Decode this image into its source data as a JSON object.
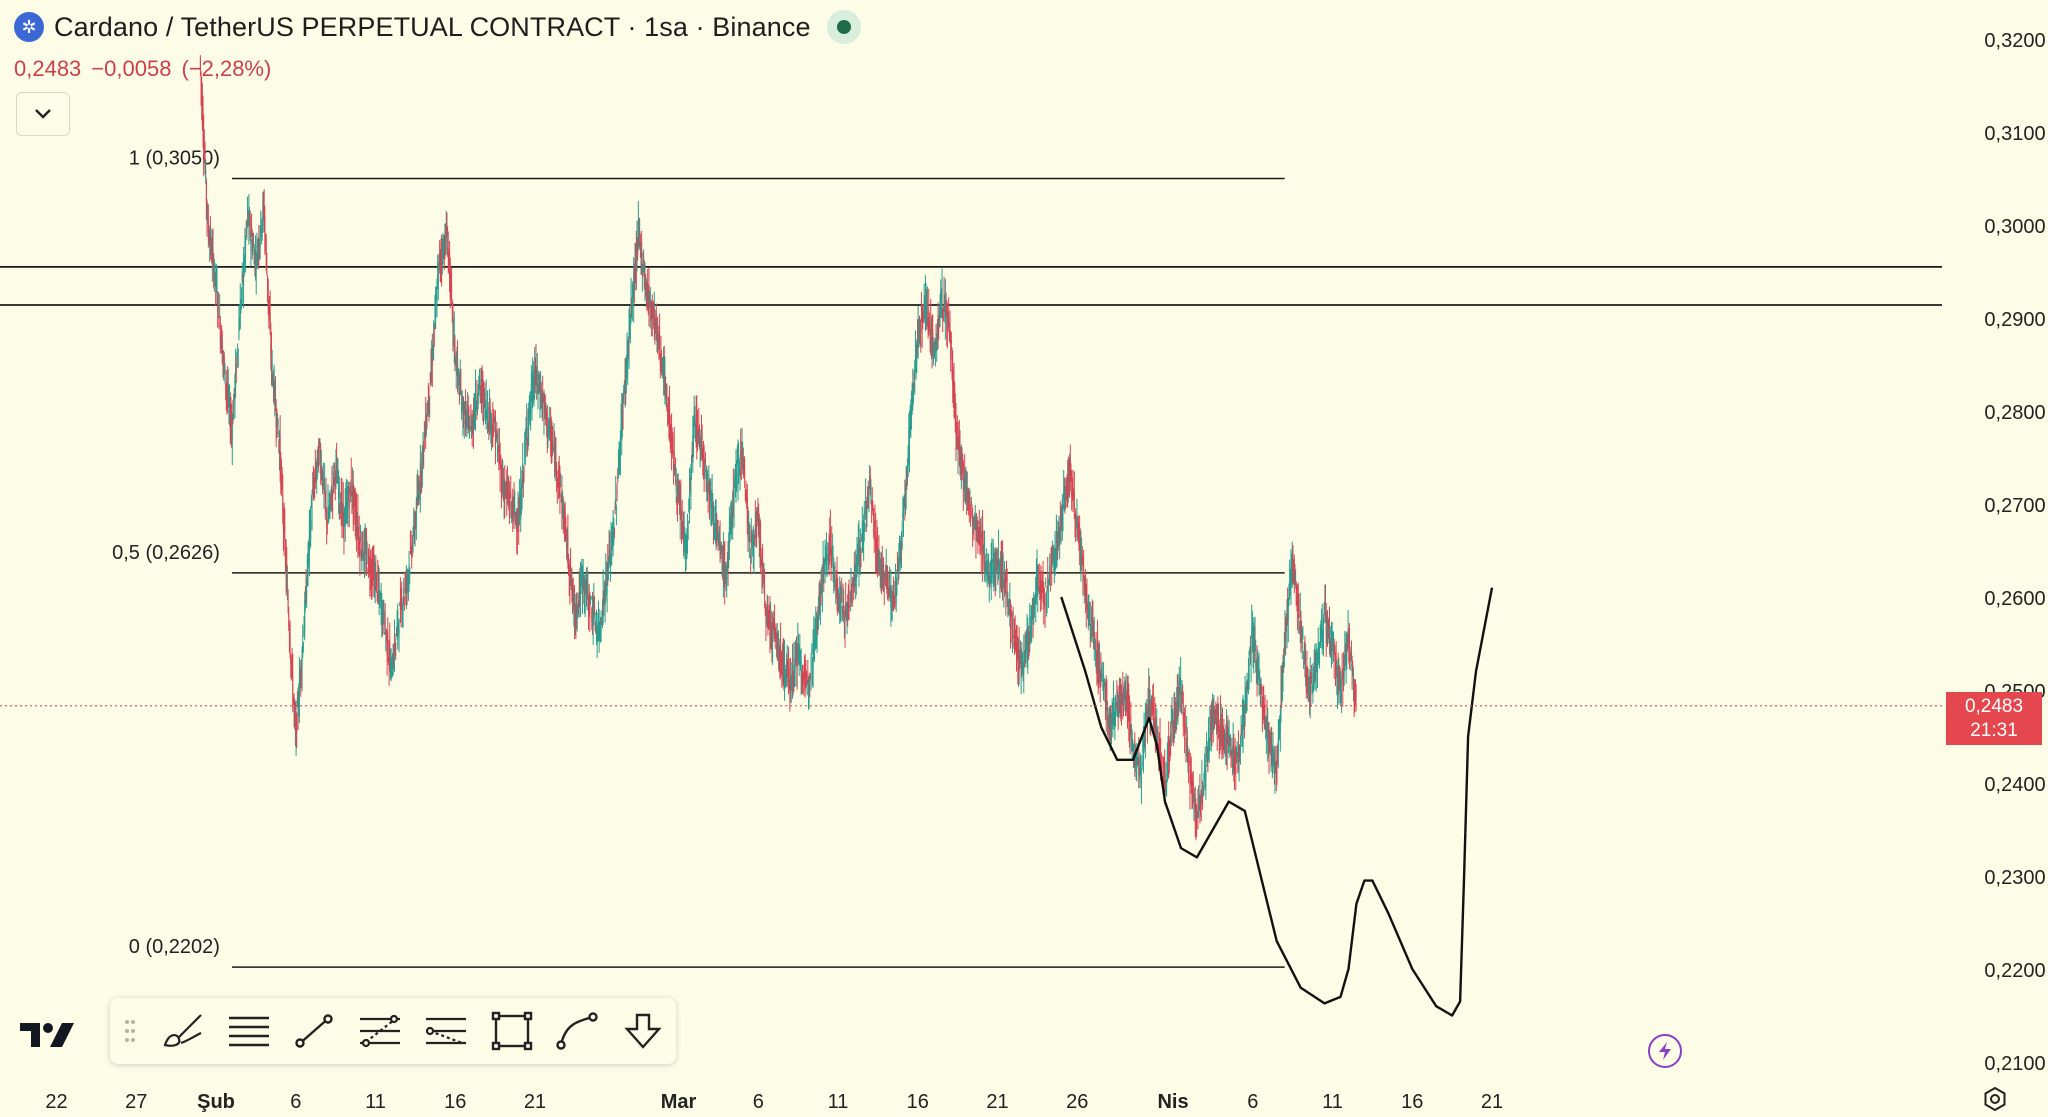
{
  "header": {
    "title": "Cardano / TetherUS PERPETUAL CONTRACT · 1sa · Binance",
    "price": "0,2483",
    "change": "−0,0058",
    "change_pct": "(−2,28%)"
  },
  "price_tag": {
    "price": "0,2483",
    "countdown": "21:31"
  },
  "toolbar": {
    "tools": [
      "brush-tool",
      "horizontal-lines-tool",
      "trend-line-tool",
      "fib-retracement-tool",
      "pitchfork-tool",
      "rectangle-tool",
      "path-tool",
      "more-tools"
    ]
  },
  "colors": {
    "background": "#fdfce6",
    "up": "#2a9d8f",
    "down": "#d64553",
    "price_tag": "#e5474f",
    "lines": "#1a1a1a"
  },
  "chart_data": {
    "type": "line",
    "title": "Cardano / TetherUS PERPETUAL CONTRACT · 1sa · Binance",
    "timeframe": "1sa",
    "ylim": [
      0.2085,
      0.324
    ],
    "y_ticks": [
      "0,3200",
      "0,3100",
      "0,3000",
      "0,2900",
      "0,2800",
      "0,2700",
      "0,2600",
      "0,2500",
      "0,2400",
      "0,2300",
      "0,2200",
      "0,2100"
    ],
    "y_tick_values": [
      0.32,
      0.31,
      0.3,
      0.29,
      0.28,
      0.27,
      0.26,
      0.25,
      0.24,
      0.23,
      0.22,
      0.21
    ],
    "x_ticks": [
      {
        "label": "22",
        "date": "2024-01-22",
        "bold": false
      },
      {
        "label": "27",
        "date": "2024-01-27",
        "bold": false
      },
      {
        "label": "Şub",
        "date": "2024-02-01",
        "bold": true
      },
      {
        "label": "6",
        "date": "2024-02-06",
        "bold": false
      },
      {
        "label": "11",
        "date": "2024-02-11",
        "bold": false
      },
      {
        "label": "16",
        "date": "2024-02-16",
        "bold": false
      },
      {
        "label": "21",
        "date": "2024-02-21",
        "bold": false
      },
      {
        "label": "Mar",
        "date": "2024-03-01",
        "bold": true
      },
      {
        "label": "6",
        "date": "2024-03-06",
        "bold": false
      },
      {
        "label": "11",
        "date": "2024-03-11",
        "bold": false
      },
      {
        "label": "16",
        "date": "2024-03-16",
        "bold": false
      },
      {
        "label": "21",
        "date": "2024-03-21",
        "bold": false
      },
      {
        "label": "26",
        "date": "2024-03-26",
        "bold": false
      },
      {
        "label": "Nis",
        "date": "2024-04-01",
        "bold": true
      },
      {
        "label": "6",
        "date": "2024-04-06",
        "bold": false
      },
      {
        "label": "11",
        "date": "2024-04-11",
        "bold": false
      },
      {
        "label": "16",
        "date": "2024-04-16",
        "bold": false
      },
      {
        "label": "21",
        "date": "2024-04-21",
        "bold": false
      }
    ],
    "series": [
      {
        "type": "price",
        "points": [
          [
            "2024-01-31 00:00",
            0.318
          ],
          [
            "2024-01-31 12:00",
            0.3
          ],
          [
            "2024-02-01 00:00",
            0.294
          ],
          [
            "2024-02-01 12:00",
            0.285
          ],
          [
            "2024-02-02 00:00",
            0.278
          ],
          [
            "2024-02-02 12:00",
            0.29
          ],
          [
            "2024-02-03 00:00",
            0.301
          ],
          [
            "2024-02-03 12:00",
            0.296
          ],
          [
            "2024-02-04 00:00",
            0.302
          ],
          [
            "2024-02-04 12:00",
            0.285
          ],
          [
            "2024-02-05 00:00",
            0.276
          ],
          [
            "2024-02-05 12:00",
            0.26
          ],
          [
            "2024-02-06 00:00",
            0.245
          ],
          [
            "2024-02-06 12:00",
            0.256
          ],
          [
            "2024-02-07 00:00",
            0.27
          ],
          [
            "2024-02-07 12:00",
            0.276
          ],
          [
            "2024-02-08 00:00",
            0.268
          ],
          [
            "2024-02-08 12:00",
            0.274
          ],
          [
            "2024-02-09 00:00",
            0.268
          ],
          [
            "2024-02-09 12:00",
            0.272
          ],
          [
            "2024-02-10 00:00",
            0.266
          ],
          [
            "2024-02-10 12:00",
            0.264
          ],
          [
            "2024-02-11 00:00",
            0.262
          ],
          [
            "2024-02-11 12:00",
            0.258
          ],
          [
            "2024-02-12 00:00",
            0.252
          ],
          [
            "2024-02-12 12:00",
            0.258
          ],
          [
            "2024-02-13 00:00",
            0.262
          ],
          [
            "2024-02-13 12:00",
            0.268
          ],
          [
            "2024-02-14 00:00",
            0.276
          ],
          [
            "2024-02-14 12:00",
            0.284
          ],
          [
            "2024-02-15 00:00",
            0.296
          ],
          [
            "2024-02-15 12:00",
            0.299
          ],
          [
            "2024-02-16 00:00",
            0.286
          ],
          [
            "2024-02-16 12:00",
            0.28
          ],
          [
            "2024-02-17 00:00",
            0.278
          ],
          [
            "2024-02-17 12:00",
            0.283
          ],
          [
            "2024-02-18 00:00",
            0.28
          ],
          [
            "2024-02-18 12:00",
            0.278
          ],
          [
            "2024-02-19 00:00",
            0.272
          ],
          [
            "2024-02-19 12:00",
            0.27
          ],
          [
            "2024-02-20 00:00",
            0.268
          ],
          [
            "2024-02-20 12:00",
            0.278
          ],
          [
            "2024-02-21 00:00",
            0.284
          ],
          [
            "2024-02-21 12:00",
            0.281
          ],
          [
            "2024-02-22 00:00",
            0.277
          ],
          [
            "2024-02-22 12:00",
            0.273
          ],
          [
            "2024-02-23 00:00",
            0.266
          ],
          [
            "2024-02-23 12:00",
            0.258
          ],
          [
            "2024-02-24 00:00",
            0.262
          ],
          [
            "2024-02-24 12:00",
            0.259
          ],
          [
            "2024-02-25 00:00",
            0.256
          ],
          [
            "2024-02-25 12:00",
            0.262
          ],
          [
            "2024-02-26 00:00",
            0.268
          ],
          [
            "2024-02-26 12:00",
            0.28
          ],
          [
            "2024-02-27 00:00",
            0.29
          ],
          [
            "2024-02-27 12:00",
            0.299
          ],
          [
            "2024-02-28 00:00",
            0.293
          ],
          [
            "2024-02-28 12:00",
            0.29
          ],
          [
            "2024-02-29 00:00",
            0.285
          ],
          [
            "2024-02-29 12:00",
            0.278
          ],
          [
            "2024-03-01 00:00",
            0.27
          ],
          [
            "2024-03-01 12:00",
            0.265
          ],
          [
            "2024-03-02 00:00",
            0.279
          ],
          [
            "2024-03-02 12:00",
            0.276
          ],
          [
            "2024-03-03 00:00",
            0.271
          ],
          [
            "2024-03-03 12:00",
            0.266
          ],
          [
            "2024-03-04 00:00",
            0.262
          ],
          [
            "2024-03-04 12:00",
            0.272
          ],
          [
            "2024-03-05 00:00",
            0.276
          ],
          [
            "2024-03-05 12:00",
            0.265
          ],
          [
            "2024-03-06 00:00",
            0.268
          ],
          [
            "2024-03-06 12:00",
            0.258
          ],
          [
            "2024-03-07 00:00",
            0.256
          ],
          [
            "2024-03-07 12:00",
            0.253
          ],
          [
            "2024-03-08 00:00",
            0.251
          ],
          [
            "2024-03-08 12:00",
            0.254
          ],
          [
            "2024-03-09 00:00",
            0.25
          ],
          [
            "2024-03-09 12:00",
            0.255
          ],
          [
            "2024-03-10 00:00",
            0.262
          ],
          [
            "2024-03-10 12:00",
            0.266
          ],
          [
            "2024-03-11 00:00",
            0.26
          ],
          [
            "2024-03-11 12:00",
            0.258
          ],
          [
            "2024-03-12 00:00",
            0.262
          ],
          [
            "2024-03-12 12:00",
            0.266
          ],
          [
            "2024-03-13 00:00",
            0.272
          ],
          [
            "2024-03-13 12:00",
            0.264
          ],
          [
            "2024-03-14 00:00",
            0.262
          ],
          [
            "2024-03-14 12:00",
            0.259
          ],
          [
            "2024-03-15 00:00",
            0.266
          ],
          [
            "2024-03-15 12:00",
            0.278
          ],
          [
            "2024-03-16 00:00",
            0.288
          ],
          [
            "2024-03-16 12:00",
            0.292
          ],
          [
            "2024-03-17 00:00",
            0.286
          ],
          [
            "2024-03-17 12:00",
            0.292
          ],
          [
            "2024-03-18 00:00",
            0.289
          ],
          [
            "2024-03-18 12:00",
            0.276
          ],
          [
            "2024-03-19 00:00",
            0.272
          ],
          [
            "2024-03-19 12:00",
            0.268
          ],
          [
            "2024-03-20 00:00",
            0.266
          ],
          [
            "2024-03-20 12:00",
            0.262
          ],
          [
            "2024-03-21 00:00",
            0.264
          ],
          [
            "2024-03-21 12:00",
            0.262
          ],
          [
            "2024-03-22 00:00",
            0.256
          ],
          [
            "2024-03-22 12:00",
            0.252
          ],
          [
            "2024-03-23 00:00",
            0.256
          ],
          [
            "2024-03-23 12:00",
            0.262
          ],
          [
            "2024-03-24 00:00",
            0.26
          ],
          [
            "2024-03-24 12:00",
            0.264
          ],
          [
            "2024-03-25 00:00",
            0.268
          ],
          [
            "2024-03-25 12:00",
            0.274
          ],
          [
            "2024-03-26 00:00",
            0.268
          ],
          [
            "2024-03-26 12:00",
            0.26
          ],
          [
            "2024-03-27 00:00",
            0.256
          ],
          [
            "2024-03-27 12:00",
            0.252
          ],
          [
            "2024-03-28 00:00",
            0.246
          ],
          [
            "2024-03-28 12:00",
            0.248
          ],
          [
            "2024-03-29 00:00",
            0.25
          ],
          [
            "2024-03-29 12:00",
            0.244
          ],
          [
            "2024-03-30 00:00",
            0.241
          ],
          [
            "2024-03-30 12:00",
            0.249
          ],
          [
            "2024-03-31 00:00",
            0.245
          ],
          [
            "2024-03-31 12:00",
            0.24
          ],
          [
            "2024-04-01 00:00",
            0.247
          ],
          [
            "2024-04-01 12:00",
            0.25
          ],
          [
            "2024-04-02 00:00",
            0.242
          ],
          [
            "2024-04-02 12:00",
            0.236
          ],
          [
            "2024-04-03 00:00",
            0.241
          ],
          [
            "2024-04-03 12:00",
            0.248
          ],
          [
            "2024-04-04 00:00",
            0.246
          ],
          [
            "2024-04-04 12:00",
            0.244
          ],
          [
            "2024-04-05 00:00",
            0.242
          ],
          [
            "2024-04-05 12:00",
            0.248
          ],
          [
            "2024-04-06 00:00",
            0.256
          ],
          [
            "2024-04-06 12:00",
            0.25
          ],
          [
            "2024-04-07 00:00",
            0.244
          ],
          [
            "2024-04-07 12:00",
            0.241
          ],
          [
            "2024-04-08 00:00",
            0.255
          ],
          [
            "2024-04-08 12:00",
            0.264
          ],
          [
            "2024-04-09 00:00",
            0.257
          ],
          [
            "2024-04-09 12:00",
            0.25
          ],
          [
            "2024-04-10 00:00",
            0.253
          ],
          [
            "2024-04-10 12:00",
            0.258
          ],
          [
            "2024-04-11 00:00",
            0.255
          ],
          [
            "2024-04-11 12:00",
            0.249
          ],
          [
            "2024-04-12 00:00",
            0.256
          ],
          [
            "2024-04-12 12:00",
            0.2483
          ]
        ]
      }
    ],
    "fibonacci": {
      "levels": [
        {
          "label": "1 (0,3050)",
          "value": 0.305
        },
        {
          "label": "0,5 (0,2626)",
          "value": 0.2626
        },
        {
          "label": "0 (0,2202)",
          "value": 0.2202
        }
      ],
      "from": "2024-02-02 00:00",
      "to": "2024-04-08 00:00"
    },
    "horizontal_lines": [
      0.2955,
      0.2914
    ],
    "current_price": 0.2483,
    "projection_drawing": [
      [
        "2024-03-25 00:00",
        0.26
      ],
      [
        "2024-03-26 12:00",
        0.252
      ],
      [
        "2024-03-27 12:00",
        0.246
      ],
      [
        "2024-03-28 12:00",
        0.2425
      ],
      [
        "2024-03-29 12:00",
        0.2425
      ],
      [
        "2024-03-30 12:00",
        0.247
      ],
      [
        "2024-03-31 00:00",
        0.244
      ],
      [
        "2024-03-31 12:00",
        0.238
      ],
      [
        "2024-04-01 12:00",
        0.233
      ],
      [
        "2024-04-02 12:00",
        0.232
      ],
      [
        "2024-04-03 12:00",
        0.235
      ],
      [
        "2024-04-04 12:00",
        0.238
      ],
      [
        "2024-04-05 12:00",
        0.237
      ],
      [
        "2024-04-06 12:00",
        0.23
      ],
      [
        "2024-04-07 12:00",
        0.223
      ],
      [
        "2024-04-09 00:00",
        0.218
      ],
      [
        "2024-04-10 12:00",
        0.2163
      ],
      [
        "2024-04-11 12:00",
        0.217
      ],
      [
        "2024-04-12 00:00",
        0.22
      ],
      [
        "2024-04-12 12:00",
        0.227
      ],
      [
        "2024-04-13 00:00",
        0.2295
      ],
      [
        "2024-04-13 12:00",
        0.2295
      ],
      [
        "2024-04-14 12:00",
        0.226
      ],
      [
        "2024-04-16 00:00",
        0.22
      ],
      [
        "2024-04-17 12:00",
        0.216
      ],
      [
        "2024-04-18 12:00",
        0.215
      ],
      [
        "2024-04-19 00:00",
        0.2165
      ],
      [
        "2024-04-19 06:00",
        0.23
      ],
      [
        "2024-04-19 12:00",
        0.245
      ],
      [
        "2024-04-20 00:00",
        0.252
      ],
      [
        "2024-04-21 00:00",
        0.261
      ]
    ],
    "grid": false,
    "legend": "none"
  }
}
